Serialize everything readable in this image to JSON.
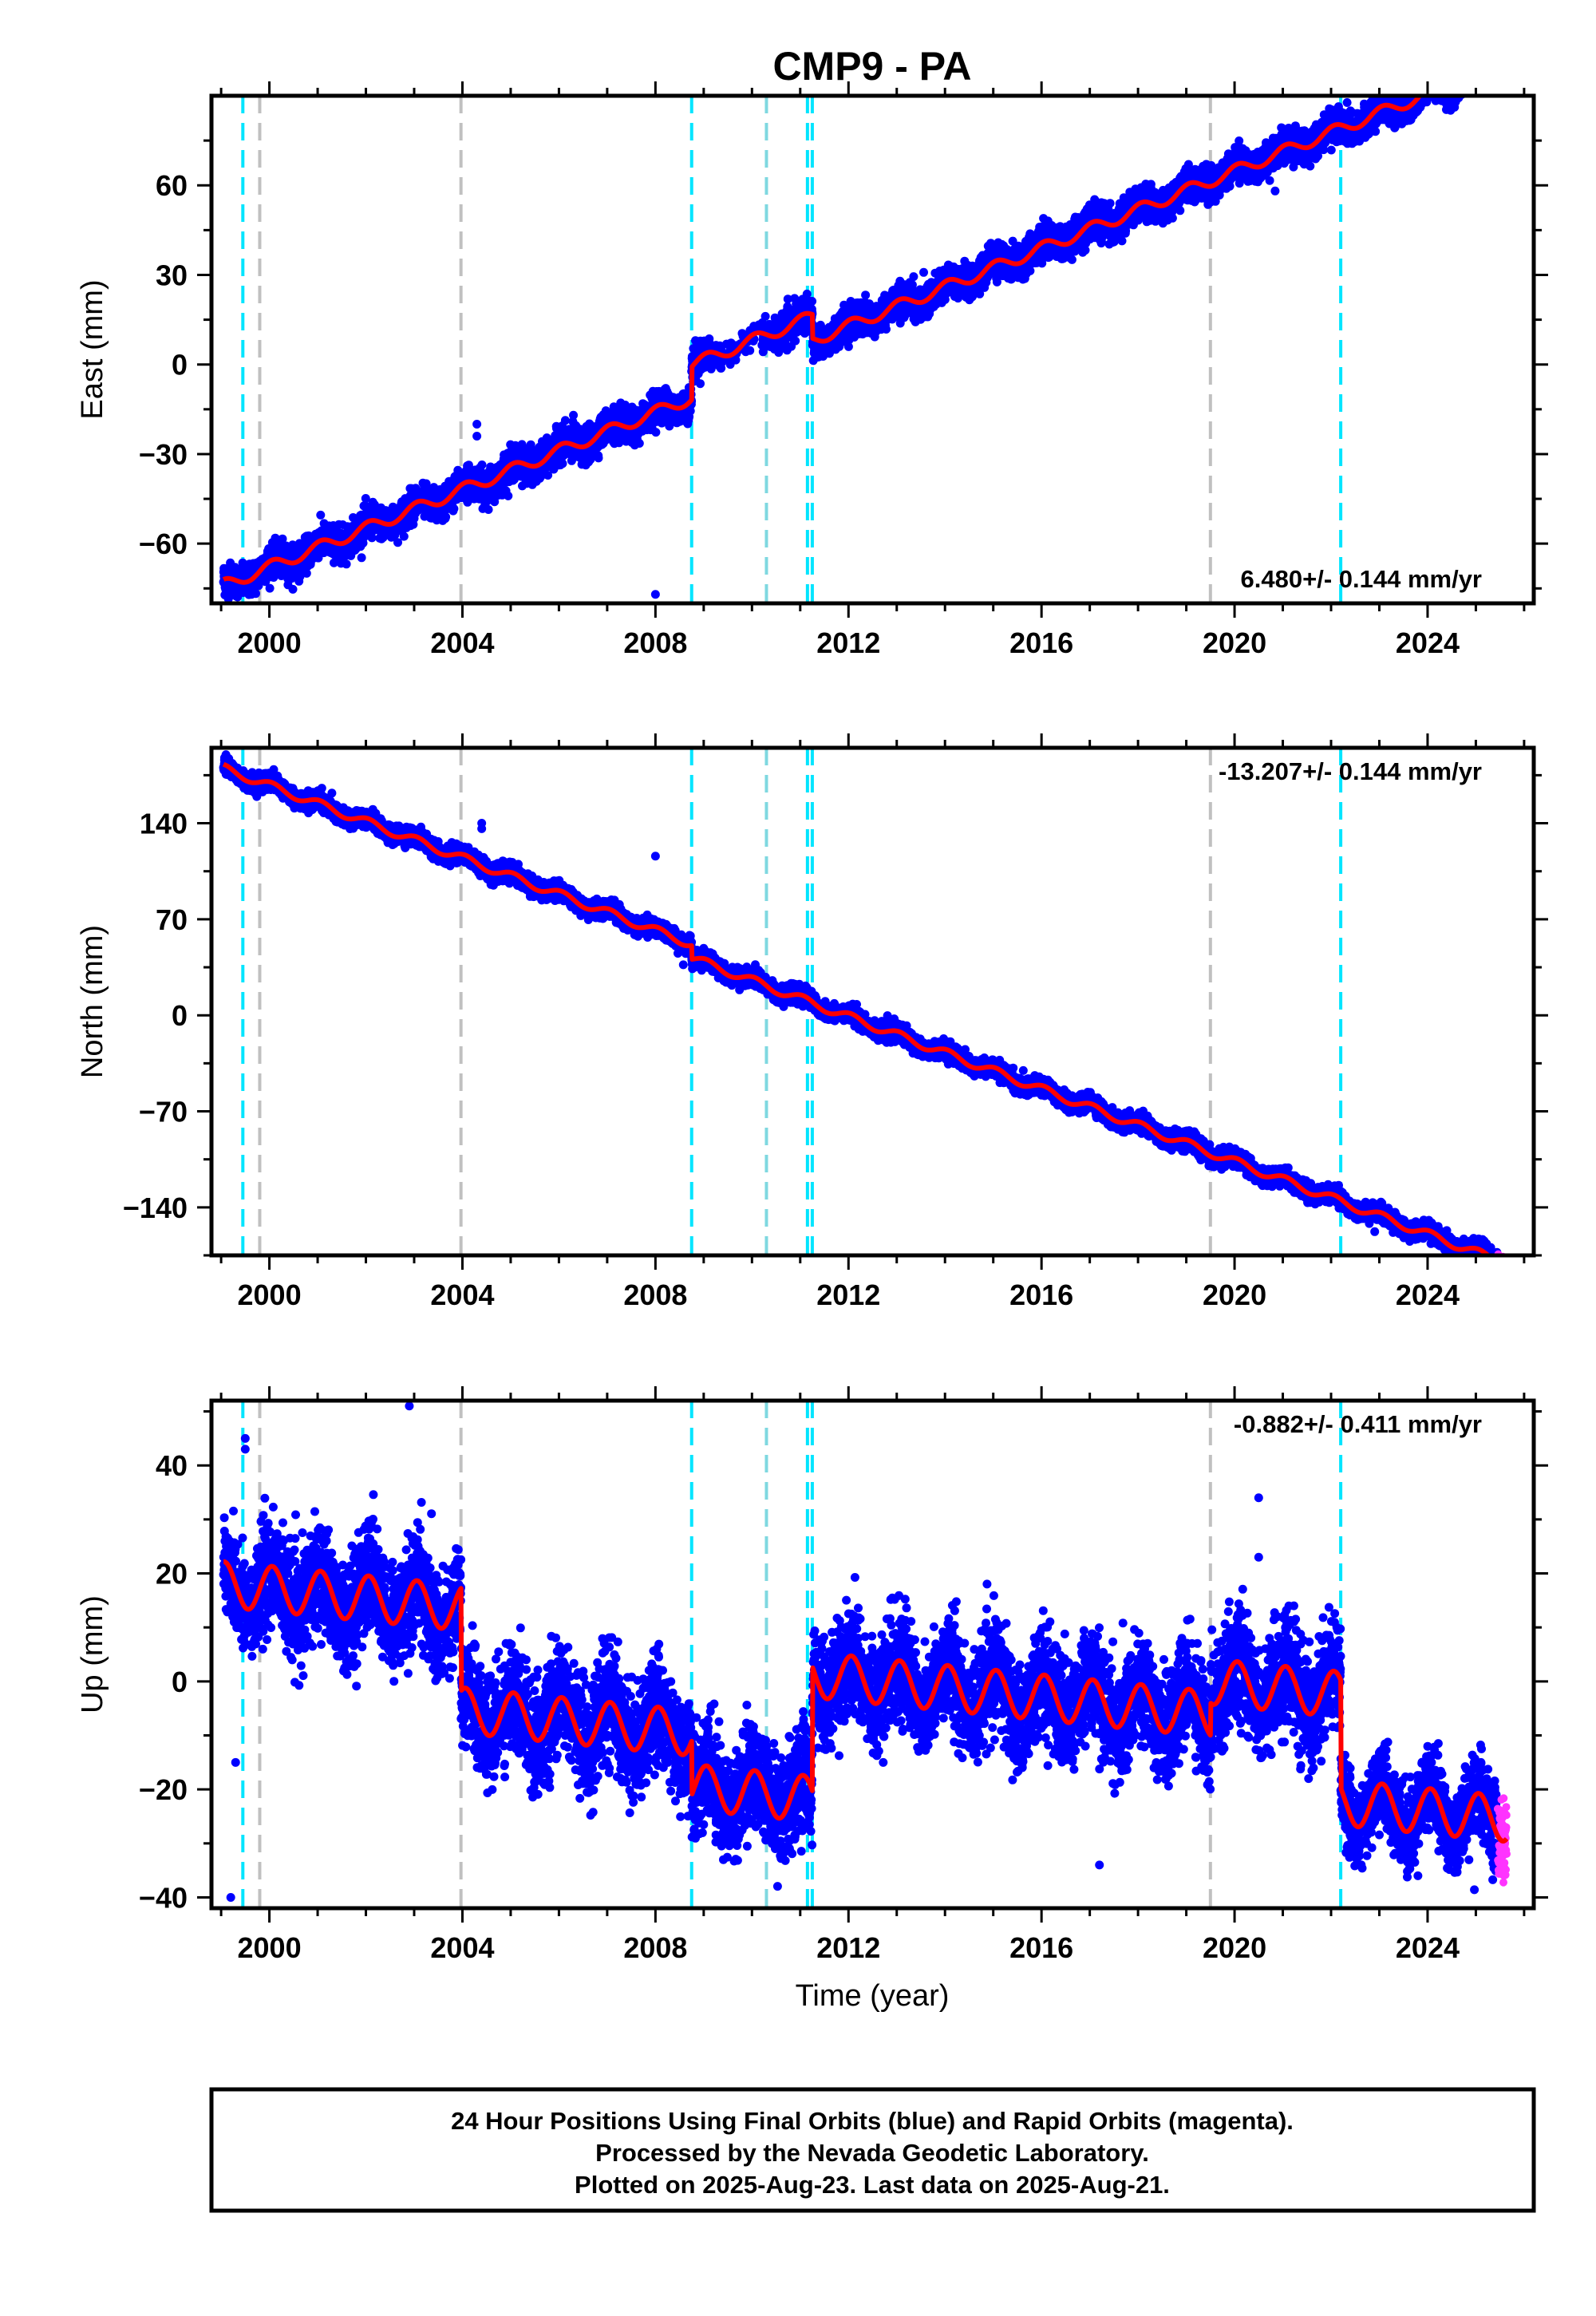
{
  "title": "CMP9 - PA",
  "colors": {
    "final_orbits": "#0000ff",
    "rapid_orbits": "#ff33ff",
    "model": "#ff0000",
    "vline_cyan": "#00e5ff",
    "vline_gray": "#c0c0c0"
  },
  "footer": {
    "line1": "24 Hour Positions Using Final Orbits (blue) and Rapid Orbits (magenta).",
    "line2": "Processed by the Nevada Geodetic Laboratory.",
    "line3": "Plotted on 2025-Aug-23. Last data on 2025-Aug-21."
  },
  "chart_data": {
    "type": "scatter",
    "xlabel": "Time (year)",
    "xlim": [
      1998.8,
      2026.2
    ],
    "x_ticks": [
      2000,
      2004,
      2008,
      2012,
      2016,
      2020,
      2024
    ],
    "x_tick_labels": [
      "2000",
      "2004",
      "2008",
      "2012",
      "2016",
      "2020",
      "2024"
    ],
    "data_start": 1999.05,
    "data_end": 2025.64,
    "rapid_start": 2025.45,
    "vertical_lines": {
      "cyan": [
        1999.45,
        2008.75,
        2011.15,
        2011.25,
        2022.2
      ],
      "gray": [
        1999.8,
        2003.97,
        2010.3,
        2019.5
      ],
      "gray_cyan": [
        2010.3
      ]
    },
    "panels": [
      {
        "id": "east",
        "ylabel": "East (mm)",
        "ylim": [
          -80,
          90
        ],
        "y_ticks": [
          -60,
          -30,
          0,
          30,
          60
        ],
        "y_tick_labels": [
          "−60",
          "−30",
          "0",
          "30",
          "60"
        ],
        "rate_label": "6.480+/- 0.144 mm/yr",
        "rate_position": "bottom-right",
        "trend": {
          "rate": 6.48,
          "t0": 1999.05,
          "v0": -74.0
        },
        "seasonal_amplitude": 2.0,
        "offsets": [
          {
            "t": 2008.75,
            "v": 11.0
          },
          {
            "t": 2011.25,
            "v": -8.0
          }
        ],
        "noise": 2.6,
        "outliers": [
          {
            "x": 2004.3,
            "y": -20
          },
          {
            "x": 2004.3,
            "y": -24
          },
          {
            "x": 2006.3,
            "y": -17
          },
          {
            "x": 2008.0,
            "y": -77
          },
          {
            "x": 2018.7,
            "y": 51
          }
        ]
      },
      {
        "id": "north",
        "ylabel": "North (mm)",
        "ylim": [
          -175,
          195
        ],
        "y_ticks": [
          -140,
          -70,
          0,
          70,
          140
        ],
        "y_tick_labels": [
          "−140",
          "−70",
          "0",
          "70",
          "140"
        ],
        "rate_label": "-13.207+/- 0.144 mm/yr",
        "rate_position": "top-right",
        "trend": {
          "rate": -13.207,
          "t0": 1999.05,
          "v0": 180.0
        },
        "seasonal_amplitude": 3.0,
        "offsets": [
          {
            "t": 2008.75,
            "v": -10.0
          }
        ],
        "noise": 3.0,
        "outliers": [
          {
            "x": 2004.4,
            "y": 140
          },
          {
            "x": 2004.4,
            "y": 136
          },
          {
            "x": 2008.0,
            "y": 116
          },
          {
            "x": 1999.1,
            "y": 190
          }
        ]
      },
      {
        "id": "up",
        "ylabel": "Up (mm)",
        "ylim": [
          -42,
          52
        ],
        "y_ticks": [
          -40,
          -20,
          0,
          20,
          40
        ],
        "y_tick_labels": [
          "−40",
          "−20",
          "0",
          "20",
          "40"
        ],
        "rate_label": "-0.882+/- 0.411 mm/yr",
        "rate_position": "top-right",
        "trend": {
          "rate": -0.882,
          "t0": 1999.05,
          "v0": 18.0
        },
        "seasonal_amplitude": 4.2,
        "offsets": [
          {
            "t": 2003.97,
            "v": -19.0
          },
          {
            "t": 2008.75,
            "v": -10.0
          },
          {
            "t": 2011.25,
            "v": 23.0
          },
          {
            "t": 2019.5,
            "v": 6.0
          },
          {
            "t": 2022.2,
            "v": -20.0
          }
        ],
        "noise": 4.8,
        "outliers": [
          {
            "x": 1999.5,
            "y": 45
          },
          {
            "x": 1999.5,
            "y": 43
          },
          {
            "x": 1999.3,
            "y": -15
          },
          {
            "x": 1999.2,
            "y": -40
          },
          {
            "x": 2002.9,
            "y": 51
          },
          {
            "x": 2020.5,
            "y": 34
          },
          {
            "x": 2020.5,
            "y": 23
          },
          {
            "x": 2017.2,
            "y": -34
          },
          {
            "x": 2023.8,
            "y": -36
          }
        ]
      }
    ]
  }
}
